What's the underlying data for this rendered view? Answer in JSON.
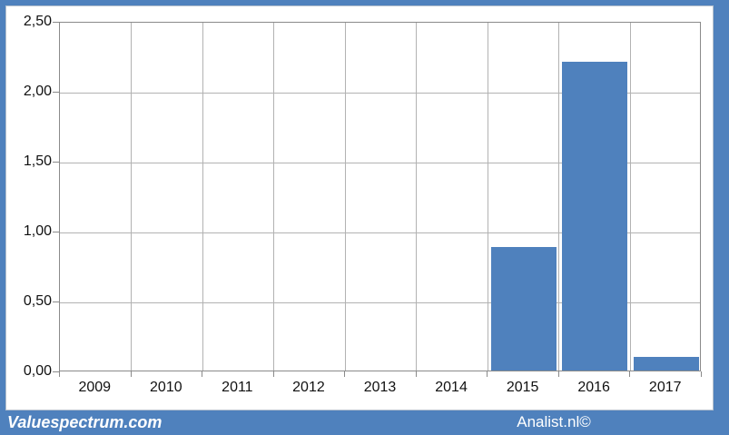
{
  "footer": {
    "brand_left": "Valuespectrum.com",
    "brand_right": "Analist.nl©"
  },
  "colors": {
    "bar": "#4f81bd",
    "frame": "#4f81bd",
    "gridline": "#b2b2b2",
    "plot_border": "#8a8a8a",
    "tick_text": "#111111",
    "footer_text": "#ffffff"
  },
  "chart_data": {
    "type": "bar",
    "categories": [
      "2009",
      "2010",
      "2011",
      "2012",
      "2013",
      "2014",
      "2015",
      "2016",
      "2017"
    ],
    "values": [
      0,
      0,
      0,
      0,
      0,
      0,
      0.88,
      2.21,
      0.1
    ],
    "title": "",
    "xlabel": "",
    "ylabel": "",
    "ylim": [
      0,
      2.5
    ],
    "ytick_interval": 0.5,
    "ytick_labels": [
      "0,00",
      "0,50",
      "1,00",
      "1,50",
      "2,00",
      "2,50"
    ],
    "grid": true,
    "legend": false,
    "decimal_separator": ","
  }
}
